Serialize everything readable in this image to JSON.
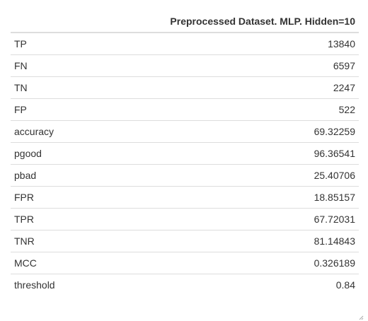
{
  "table": {
    "header": "Preprocessed Dataset. MLP. Hidden=10",
    "rows": [
      {
        "label": "TP",
        "value": "13840"
      },
      {
        "label": "FN",
        "value": "6597"
      },
      {
        "label": "TN",
        "value": "2247"
      },
      {
        "label": "FP",
        "value": "522"
      },
      {
        "label": "accuracy",
        "value": "69.32259"
      },
      {
        "label": "pgood",
        "value": "96.36541"
      },
      {
        "label": "pbad",
        "value": "25.40706"
      },
      {
        "label": "FPR",
        "value": "18.85157"
      },
      {
        "label": "TPR",
        "value": "67.72031"
      },
      {
        "label": "TNR",
        "value": "81.14843"
      },
      {
        "label": "MCC",
        "value": "0.326189"
      },
      {
        "label": "threshold",
        "value": "0.84"
      }
    ]
  },
  "icons": {
    "resize_handle": "resize-grip-icon"
  }
}
